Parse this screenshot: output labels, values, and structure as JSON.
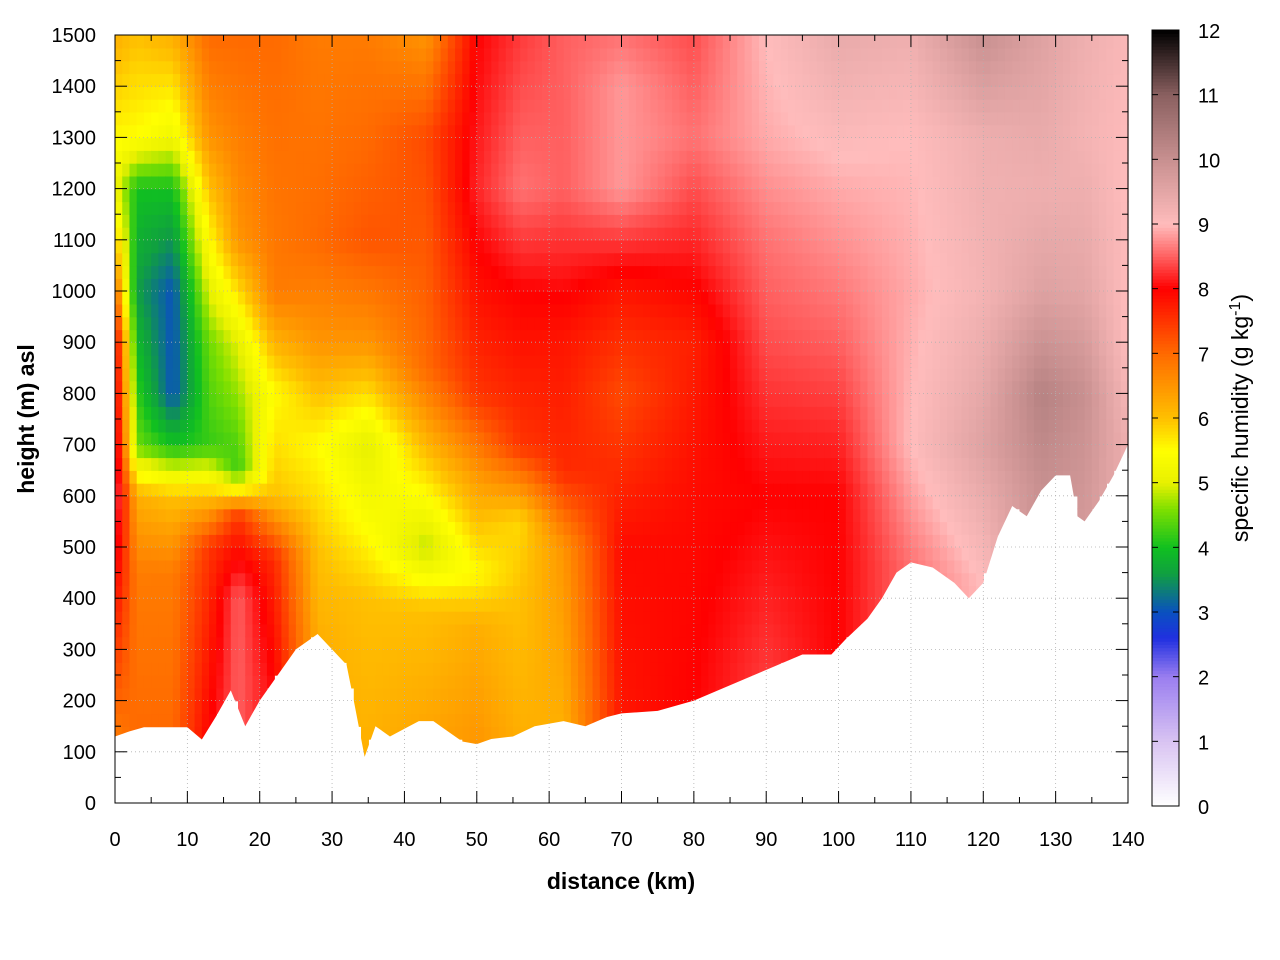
{
  "chart_data": {
    "type": "heatmap",
    "title": "",
    "xlabel": "distance (km)",
    "ylabel": "height (m) asl",
    "colorbar_label_main": "specific humidity (g kg",
    "colorbar_label_sup": "-1",
    "colorbar_label_close": ")",
    "xlim": [
      0,
      140
    ],
    "ylim": [
      0,
      1500
    ],
    "clim": [
      0,
      12
    ],
    "x_ticks": [
      0,
      10,
      20,
      30,
      40,
      50,
      60,
      70,
      80,
      90,
      100,
      110,
      120,
      130,
      140
    ],
    "x_tick_labels": [
      "0",
      "10",
      "20",
      "30",
      "40",
      "50",
      "60",
      "70",
      "80",
      "90",
      "100",
      "110",
      "120",
      "130",
      "140"
    ],
    "y_ticks": [
      0,
      100,
      200,
      300,
      400,
      500,
      600,
      700,
      800,
      900,
      1000,
      1100,
      1200,
      1300,
      1400,
      1500
    ],
    "y_tick_labels": [
      "0",
      "100",
      "200",
      "300",
      "400",
      "500",
      "600",
      "700",
      "800",
      "900",
      "1000",
      "1100",
      "1200",
      "1300",
      "1400",
      "1500"
    ],
    "c_ticks": [
      0,
      1,
      2,
      3,
      4,
      5,
      6,
      7,
      8,
      9,
      10,
      11,
      12
    ],
    "c_tick_labels": [
      "0",
      "1",
      "2",
      "3",
      "4",
      "5",
      "6",
      "7",
      "8",
      "9",
      "10",
      "11",
      "12"
    ],
    "grid": true,
    "colormap": [
      [
        0,
        "#ffffff"
      ],
      [
        1,
        "#d9c4f2"
      ],
      [
        2,
        "#9a7ef0"
      ],
      [
        2.6,
        "#2030e0"
      ],
      [
        3,
        "#0a50c0"
      ],
      [
        3.6,
        "#10a040"
      ],
      [
        4,
        "#10c020"
      ],
      [
        4.6,
        "#80e000"
      ],
      [
        5,
        "#e8f000"
      ],
      [
        5.5,
        "#ffff00"
      ],
      [
        6,
        "#ffc000"
      ],
      [
        7,
        "#ff6a00"
      ],
      [
        7.6,
        "#ff2a00"
      ],
      [
        8,
        "#ff0000"
      ],
      [
        8.5,
        "#ff6060"
      ],
      [
        9,
        "#ffbcbc"
      ],
      [
        10,
        "#c89090"
      ],
      [
        11,
        "#8a6060"
      ],
      [
        12,
        "#000000"
      ]
    ],
    "terrain_height": [
      [
        0,
        130
      ],
      [
        2,
        140
      ],
      [
        4,
        148
      ],
      [
        7,
        148
      ],
      [
        10,
        148
      ],
      [
        12,
        124
      ],
      [
        14,
        170
      ],
      [
        16,
        220
      ],
      [
        18,
        150
      ],
      [
        20,
        200
      ],
      [
        22,
        240
      ],
      [
        25,
        300
      ],
      [
        28,
        330
      ],
      [
        30,
        300
      ],
      [
        32,
        270
      ],
      [
        33,
        200
      ],
      [
        34.5,
        90
      ],
      [
        36,
        150
      ],
      [
        38,
        130
      ],
      [
        40,
        145
      ],
      [
        42,
        160
      ],
      [
        44,
        160
      ],
      [
        46,
        140
      ],
      [
        48,
        120
      ],
      [
        50,
        115
      ],
      [
        52,
        125
      ],
      [
        55,
        130
      ],
      [
        58,
        150
      ],
      [
        62,
        160
      ],
      [
        65,
        150
      ],
      [
        68,
        168
      ],
      [
        70,
        175
      ],
      [
        75,
        180
      ],
      [
        80,
        200
      ],
      [
        85,
        230
      ],
      [
        90,
        260
      ],
      [
        95,
        290
      ],
      [
        99,
        290
      ],
      [
        101,
        320
      ],
      [
        104,
        360
      ],
      [
        106,
        400
      ],
      [
        108,
        450
      ],
      [
        110,
        470
      ],
      [
        113,
        460
      ],
      [
        116,
        430
      ],
      [
        118,
        400
      ],
      [
        120,
        430
      ],
      [
        122,
        520
      ],
      [
        124,
        580
      ],
      [
        126,
        560
      ],
      [
        128,
        610
      ],
      [
        130,
        640
      ],
      [
        132,
        640
      ],
      [
        133,
        560
      ],
      [
        134,
        550
      ],
      [
        136,
        590
      ],
      [
        138,
        640
      ],
      [
        140,
        700
      ]
    ],
    "humidity_columns": [
      {
        "x": 0,
        "profile": [
          [
            130,
            6.8
          ],
          [
            600,
            8.6
          ],
          [
            900,
            8.2
          ],
          [
            1050,
            6.5
          ],
          [
            1200,
            5.2
          ],
          [
            1500,
            6.2
          ]
        ]
      },
      {
        "x": 3,
        "profile": [
          [
            140,
            7.0
          ],
          [
            450,
            6.8
          ],
          [
            600,
            6.2
          ],
          [
            700,
            4.5
          ],
          [
            1000,
            3.6
          ],
          [
            1200,
            4.0
          ],
          [
            1300,
            5.5
          ],
          [
            1500,
            6.0
          ]
        ]
      },
      {
        "x": 8,
        "profile": [
          [
            148,
            7.0
          ],
          [
            450,
            6.8
          ],
          [
            600,
            6.0
          ],
          [
            700,
            4.0
          ],
          [
            800,
            3.0
          ],
          [
            1000,
            3.0
          ],
          [
            1200,
            4.0
          ],
          [
            1300,
            5.2
          ],
          [
            1500,
            6.2
          ]
        ]
      },
      {
        "x": 13,
        "profile": [
          [
            130,
            8.0
          ],
          [
            500,
            7.5
          ],
          [
            600,
            6.0
          ],
          [
            700,
            4.2
          ],
          [
            900,
            4.5
          ],
          [
            1100,
            5.5
          ],
          [
            1300,
            6.5
          ],
          [
            1500,
            7.0
          ]
        ]
      },
      {
        "x": 17,
        "profile": [
          [
            150,
            8.5
          ],
          [
            400,
            8.5
          ],
          [
            560,
            7.5
          ],
          [
            650,
            4.2
          ],
          [
            900,
            5.0
          ],
          [
            1100,
            6.5
          ],
          [
            1500,
            7.0
          ]
        ]
      },
      {
        "x": 22,
        "profile": [
          [
            240,
            8.0
          ],
          [
            480,
            7.6
          ],
          [
            600,
            6.0
          ],
          [
            800,
            5.5
          ],
          [
            1000,
            6.8
          ],
          [
            1500,
            7.0
          ]
        ]
      },
      {
        "x": 28,
        "profile": [
          [
            330,
            6.2
          ],
          [
            500,
            6.0
          ],
          [
            700,
            5.5
          ],
          [
            900,
            6.5
          ],
          [
            1100,
            7.0
          ],
          [
            1500,
            6.8
          ]
        ]
      },
      {
        "x": 35,
        "profile": [
          [
            90,
            6.2
          ],
          [
            400,
            6.0
          ],
          [
            550,
            5.4
          ],
          [
            700,
            5.0
          ],
          [
            900,
            6.5
          ],
          [
            1100,
            7.2
          ],
          [
            1500,
            6.8
          ]
        ]
      },
      {
        "x": 43,
        "profile": [
          [
            150,
            6.3
          ],
          [
            380,
            6.0
          ],
          [
            500,
            4.8
          ],
          [
            650,
            5.8
          ],
          [
            850,
            7.0
          ],
          [
            1300,
            7.3
          ],
          [
            1500,
            6.5
          ]
        ]
      },
      {
        "x": 50,
        "profile": [
          [
            115,
            6.5
          ],
          [
            350,
            6.2
          ],
          [
            450,
            5.5
          ],
          [
            650,
            6.5
          ],
          [
            800,
            7.5
          ],
          [
            1200,
            8.2
          ],
          [
            1500,
            8.0
          ]
        ]
      },
      {
        "x": 56,
        "profile": [
          [
            130,
            6.2
          ],
          [
            400,
            6.0
          ],
          [
            550,
            5.8
          ],
          [
            700,
            7.5
          ],
          [
            1000,
            8.0
          ],
          [
            1200,
            8.6
          ],
          [
            1500,
            8.3
          ]
        ]
      },
      {
        "x": 62,
        "profile": [
          [
            160,
            6.2
          ],
          [
            500,
            6.5
          ],
          [
            650,
            7.6
          ],
          [
            900,
            7.8
          ],
          [
            1200,
            8.5
          ],
          [
            1500,
            8.5
          ]
        ]
      },
      {
        "x": 70,
        "profile": [
          [
            175,
            7.8
          ],
          [
            500,
            7.9
          ],
          [
            800,
            7.3
          ],
          [
            1000,
            7.8
          ],
          [
            1200,
            8.8
          ],
          [
            1400,
            8.8
          ],
          [
            1500,
            8.6
          ]
        ]
      },
      {
        "x": 80,
        "profile": [
          [
            200,
            8.0
          ],
          [
            600,
            7.9
          ],
          [
            900,
            7.7
          ],
          [
            1100,
            8.2
          ],
          [
            1300,
            8.6
          ],
          [
            1500,
            8.4
          ]
        ]
      },
      {
        "x": 90,
        "profile": [
          [
            260,
            8.3
          ],
          [
            600,
            8.0
          ],
          [
            900,
            8.4
          ],
          [
            1100,
            8.6
          ],
          [
            1300,
            8.9
          ],
          [
            1500,
            9.0
          ]
        ]
      },
      {
        "x": 100,
        "profile": [
          [
            290,
            8.0
          ],
          [
            600,
            8.0
          ],
          [
            900,
            8.5
          ],
          [
            1200,
            8.9
          ],
          [
            1500,
            9.4
          ]
        ]
      },
      {
        "x": 110,
        "profile": [
          [
            470,
            8.6
          ],
          [
            700,
            9.0
          ],
          [
            1000,
            8.9
          ],
          [
            1300,
            9.0
          ],
          [
            1500,
            9.3
          ]
        ]
      },
      {
        "x": 120,
        "profile": [
          [
            430,
            9.0
          ],
          [
            700,
            9.6
          ],
          [
            1000,
            9.2
          ],
          [
            1300,
            9.3
          ],
          [
            1500,
            10.0
          ]
        ]
      },
      {
        "x": 128,
        "profile": [
          [
            610,
            10.0
          ],
          [
            800,
            10.3
          ],
          [
            1000,
            9.6
          ],
          [
            1200,
            9.3
          ],
          [
            1500,
            9.6
          ]
        ]
      },
      {
        "x": 134,
        "profile": [
          [
            550,
            9.8
          ],
          [
            800,
            10.0
          ],
          [
            1000,
            9.5
          ],
          [
            1300,
            9.2
          ],
          [
            1500,
            9.3
          ]
        ]
      },
      {
        "x": 140,
        "profile": [
          [
            700,
            9.3
          ],
          [
            900,
            9.0
          ],
          [
            1200,
            9.0
          ],
          [
            1500,
            9.1
          ]
        ]
      }
    ]
  }
}
